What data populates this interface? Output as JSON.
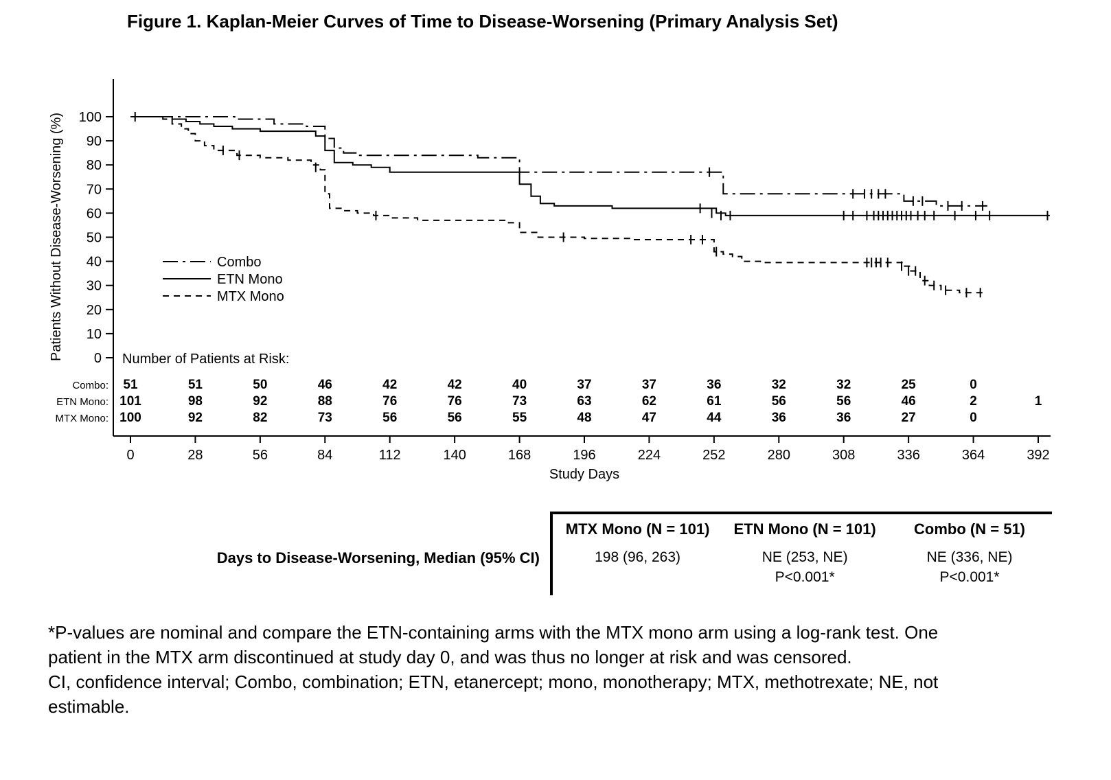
{
  "chart_data": {
    "type": "line",
    "subtype": "kaplan-meier-step",
    "title": "Figure 1. Kaplan-Meier Curves of Time to Disease-Worsening (Primary Analysis Set)",
    "xlabel": "Study Days",
    "ylabel": "Patients Without Disease-Worsening (%)",
    "xlim": [
      0,
      392
    ],
    "ylim": [
      0,
      100
    ],
    "xticks": [
      0,
      28,
      56,
      84,
      112,
      140,
      168,
      196,
      224,
      252,
      280,
      308,
      336,
      364,
      392
    ],
    "yticks": [
      0,
      10,
      20,
      30,
      40,
      50,
      60,
      70,
      80,
      90,
      100
    ],
    "grid": false,
    "legend_position": "inside-left",
    "line_color": "#000000",
    "series": [
      {
        "name": "Combo",
        "line_style": "dash-dot",
        "steps": [
          [
            0,
            100
          ],
          [
            45,
            99
          ],
          [
            62,
            97
          ],
          [
            76,
            96
          ],
          [
            84,
            91
          ],
          [
            88,
            87
          ],
          [
            92,
            85
          ],
          [
            98,
            84
          ],
          [
            150,
            83
          ],
          [
            168,
            77
          ],
          [
            256,
            68
          ],
          [
            334,
            65
          ],
          [
            348,
            63
          ],
          [
            370,
            63
          ]
        ],
        "censors": [
          [
            250,
            77
          ],
          [
            312,
            68
          ],
          [
            317,
            68
          ],
          [
            320,
            68
          ],
          [
            323,
            68
          ],
          [
            326,
            68
          ],
          [
            338,
            65
          ],
          [
            342,
            65
          ],
          [
            353,
            63
          ],
          [
            359,
            63
          ],
          [
            368,
            63
          ]
        ]
      },
      {
        "name": "ETN Mono",
        "line_style": "solid",
        "steps": [
          [
            0,
            100
          ],
          [
            18,
            99
          ],
          [
            24,
            98
          ],
          [
            30,
            97
          ],
          [
            36,
            96
          ],
          [
            44,
            95
          ],
          [
            56,
            94
          ],
          [
            80,
            92
          ],
          [
            84,
            86
          ],
          [
            88,
            81
          ],
          [
            96,
            80
          ],
          [
            104,
            79
          ],
          [
            112,
            77
          ],
          [
            168,
            72
          ],
          [
            173,
            67
          ],
          [
            177,
            64
          ],
          [
            183,
            63
          ],
          [
            208,
            62
          ],
          [
            253,
            60
          ],
          [
            257,
            59
          ],
          [
            397,
            59
          ]
        ],
        "censors": [
          [
            2,
            100
          ],
          [
            246,
            62
          ],
          [
            251,
            60
          ],
          [
            255,
            59
          ],
          [
            259,
            59
          ],
          [
            308,
            59
          ],
          [
            312,
            59
          ],
          [
            318,
            59
          ],
          [
            321,
            59
          ],
          [
            323,
            59
          ],
          [
            325,
            59
          ],
          [
            327,
            59
          ],
          [
            329,
            59
          ],
          [
            331,
            59
          ],
          [
            333,
            59
          ],
          [
            335,
            59
          ],
          [
            337,
            59
          ],
          [
            340,
            59
          ],
          [
            343,
            59
          ],
          [
            347,
            59
          ],
          [
            356,
            59
          ],
          [
            365,
            59
          ],
          [
            371,
            59
          ],
          [
            396,
            59
          ]
        ]
      },
      {
        "name": "MTX Mono",
        "line_style": "dashed",
        "steps": [
          [
            0,
            100
          ],
          [
            14,
            99
          ],
          [
            18,
            97
          ],
          [
            22,
            95
          ],
          [
            25,
            93
          ],
          [
            28,
            90
          ],
          [
            32,
            88
          ],
          [
            36,
            86
          ],
          [
            46,
            84
          ],
          [
            56,
            83
          ],
          [
            68,
            82
          ],
          [
            78,
            80
          ],
          [
            82,
            78
          ],
          [
            84,
            68
          ],
          [
            86,
            62
          ],
          [
            92,
            61
          ],
          [
            98,
            60
          ],
          [
            105,
            59
          ],
          [
            112,
            58
          ],
          [
            124,
            57
          ],
          [
            162,
            56
          ],
          [
            168,
            52
          ],
          [
            176,
            50
          ],
          [
            196,
            49.5
          ],
          [
            216,
            49
          ],
          [
            252,
            44
          ],
          [
            256,
            43
          ],
          [
            260,
            42
          ],
          [
            264,
            40
          ],
          [
            272,
            39.5
          ],
          [
            334,
            38
          ],
          [
            337,
            36
          ],
          [
            341,
            32
          ],
          [
            345,
            30
          ],
          [
            350,
            28
          ],
          [
            358,
            27
          ],
          [
            368,
            27
          ]
        ],
        "censors": [
          [
            40,
            86
          ],
          [
            47,
            84
          ],
          [
            80,
            79
          ],
          [
            106,
            59
          ],
          [
            187,
            50
          ],
          [
            242,
            49
          ],
          [
            247,
            49
          ],
          [
            253,
            44
          ],
          [
            318,
            39.5
          ],
          [
            320,
            39.5
          ],
          [
            322,
            39.5
          ],
          [
            324,
            39.5
          ],
          [
            327,
            39.5
          ],
          [
            333,
            38
          ],
          [
            336,
            36
          ],
          [
            339,
            36
          ],
          [
            343,
            32
          ],
          [
            347,
            30
          ],
          [
            352,
            28
          ],
          [
            361,
            27
          ],
          [
            367,
            27
          ]
        ]
      }
    ],
    "risk_table": {
      "title": "Number of Patients at Risk:",
      "days": [
        0,
        28,
        56,
        84,
        112,
        140,
        168,
        196,
        224,
        252,
        280,
        308,
        336,
        364,
        392
      ],
      "rows": [
        {
          "label": "Combo:",
          "values": [
            51,
            51,
            50,
            46,
            42,
            42,
            40,
            37,
            37,
            36,
            32,
            32,
            25,
            0
          ]
        },
        {
          "label": "ETN Mono:",
          "values": [
            101,
            98,
            92,
            88,
            76,
            76,
            73,
            63,
            62,
            61,
            56,
            56,
            46,
            2,
            1
          ]
        },
        {
          "label": "MTX Mono:",
          "values": [
            100,
            92,
            82,
            73,
            56,
            56,
            55,
            48,
            47,
            44,
            36,
            36,
            27,
            0
          ]
        }
      ]
    }
  },
  "summary_table": {
    "row_label": "Days to Disease-Worsening, Median (95% CI)",
    "columns": [
      {
        "header": "MTX Mono (N = 101)",
        "value": "198 (96, 263)",
        "pvalue": ""
      },
      {
        "header": "ETN Mono (N = 101)",
        "value": "NE (253, NE)",
        "pvalue": "P<0.001*"
      },
      {
        "header": "Combo (N = 51)",
        "value": "NE (336, NE)",
        "pvalue": "P<0.001*"
      }
    ]
  },
  "footnotes": {
    "p1": "*P-values are nominal and compare the ETN-containing arms with the MTX mono arm using a log-rank test. One patient in the MTX arm discontinued at study day 0, and was thus no longer at risk and was censored.",
    "p2": "CI, confidence interval; Combo, combination; ETN, etanercept; mono, monotherapy; MTX, methotrexate; NE, not estimable."
  },
  "colors": {
    "line": "#000000",
    "background": "#ffffff"
  }
}
